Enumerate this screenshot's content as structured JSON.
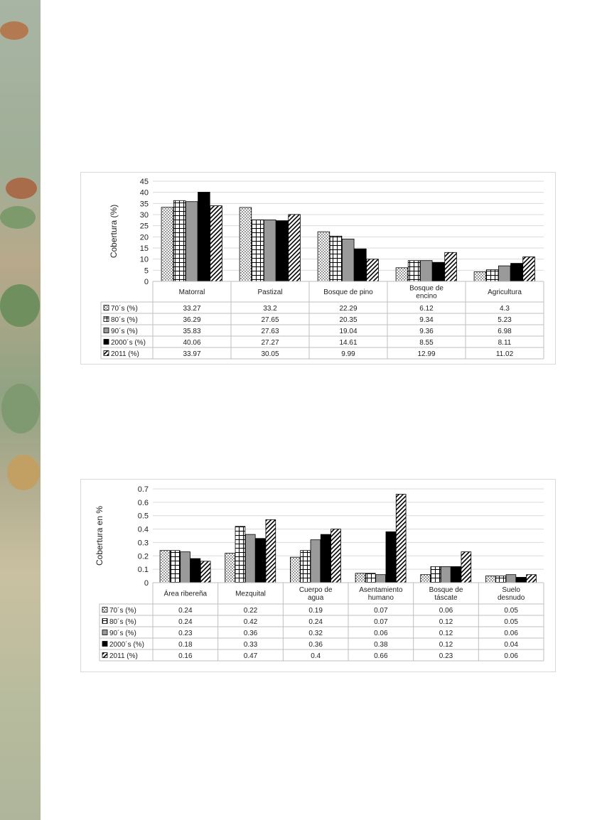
{
  "charts": [
    {
      "chart_data": {
        "type": "bar",
        "ylabel": "Cobertura (%)",
        "ylim": [
          0,
          45
        ],
        "yticks": [
          0,
          5,
          10,
          15,
          20,
          25,
          30,
          35,
          40,
          45
        ],
        "grid": true,
        "categories": [
          [
            "Matorral"
          ],
          [
            "Pastizal"
          ],
          [
            "Bosque de pino"
          ],
          [
            "Bosque de",
            "encino"
          ],
          [
            "Agricultura"
          ]
        ],
        "series": [
          {
            "name": "70´s (%)",
            "pattern": "dots",
            "values": [
              33.27,
              33.2,
              22.29,
              6.12,
              4.3
            ]
          },
          {
            "name": "80´s (%)",
            "pattern": "grid",
            "values": [
              36.29,
              27.65,
              20.35,
              9.34,
              5.23
            ]
          },
          {
            "name": "90´s (%)",
            "pattern": "gray",
            "values": [
              35.83,
              27.63,
              19.04,
              9.36,
              6.98
            ]
          },
          {
            "name": "2000´s (%)",
            "pattern": "black",
            "values": [
              40.06,
              27.27,
              14.61,
              8.55,
              8.11
            ]
          },
          {
            "name": "2011 (%)",
            "pattern": "diag",
            "values": [
              33.97,
              30.05,
              9.99,
              12.99,
              11.02
            ]
          }
        ],
        "table_values": [
          [
            "33.27",
            "33.2",
            "22.29",
            "6.12",
            "4.3"
          ],
          [
            "36.29",
            "27.65",
            "20.35",
            "9.34",
            "5.23"
          ],
          [
            "35.83",
            "27.63",
            "19.04",
            "9.36",
            "6.98"
          ],
          [
            "40.06",
            "27.27",
            "14.61",
            "8.55",
            "8.11"
          ],
          [
            "33.97",
            "30.05",
            "9.99",
            "12.99",
            "11.02"
          ]
        ]
      }
    },
    {
      "chart_data": {
        "type": "bar",
        "ylabel": "Cobertura en %",
        "ylim": [
          0,
          0.7
        ],
        "yticks": [
          "0",
          "0.1",
          "0.2",
          "0.3",
          "0.4",
          "0.5",
          "0.6",
          "0.7"
        ],
        "grid": true,
        "categories": [
          [
            "Área ribereña"
          ],
          [
            "Mezquital"
          ],
          [
            "Cuerpo de",
            "agua"
          ],
          [
            "Asentamiento",
            "humano"
          ],
          [
            "Bosque de",
            "táscate"
          ],
          [
            "Suelo",
            "desnudo"
          ]
        ],
        "series": [
          {
            "name": "70´s (%)",
            "pattern": "dots",
            "values": [
              0.24,
              0.22,
              0.19,
              0.07,
              0.06,
              0.05
            ]
          },
          {
            "name": "80´s (%)",
            "pattern": "grid",
            "values": [
              0.24,
              0.42,
              0.24,
              0.07,
              0.12,
              0.05
            ]
          },
          {
            "name": "90´s (%)",
            "pattern": "gray",
            "values": [
              0.23,
              0.36,
              0.32,
              0.06,
              0.12,
              0.06
            ]
          },
          {
            "name": "2000´s (%)",
            "pattern": "black",
            "values": [
              0.18,
              0.33,
              0.36,
              0.38,
              0.12,
              0.04
            ]
          },
          {
            "name": "2011 (%)",
            "pattern": "diag",
            "values": [
              0.16,
              0.47,
              0.4,
              0.66,
              0.23,
              0.06
            ]
          }
        ],
        "table_values": [
          [
            "0.24",
            "0.22",
            "0.19",
            "0.07",
            "0.06",
            "0.05"
          ],
          [
            "0.24",
            "0.42",
            "0.24",
            "0.07",
            "0.12",
            "0.05"
          ],
          [
            "0.23",
            "0.36",
            "0.32",
            "0.06",
            "0.12",
            "0.06"
          ],
          [
            "0.18",
            "0.33",
            "0.36",
            "0.38",
            "0.12",
            "0.04"
          ],
          [
            "0.16",
            "0.47",
            "0.4",
            "0.66",
            "0.23",
            "0.06"
          ]
        ]
      }
    }
  ],
  "colors": {
    "gray_fill": "#9a9a9a",
    "black_fill": "#000000",
    "grid": "#d9d9d9",
    "border": "#bfbfbf"
  }
}
